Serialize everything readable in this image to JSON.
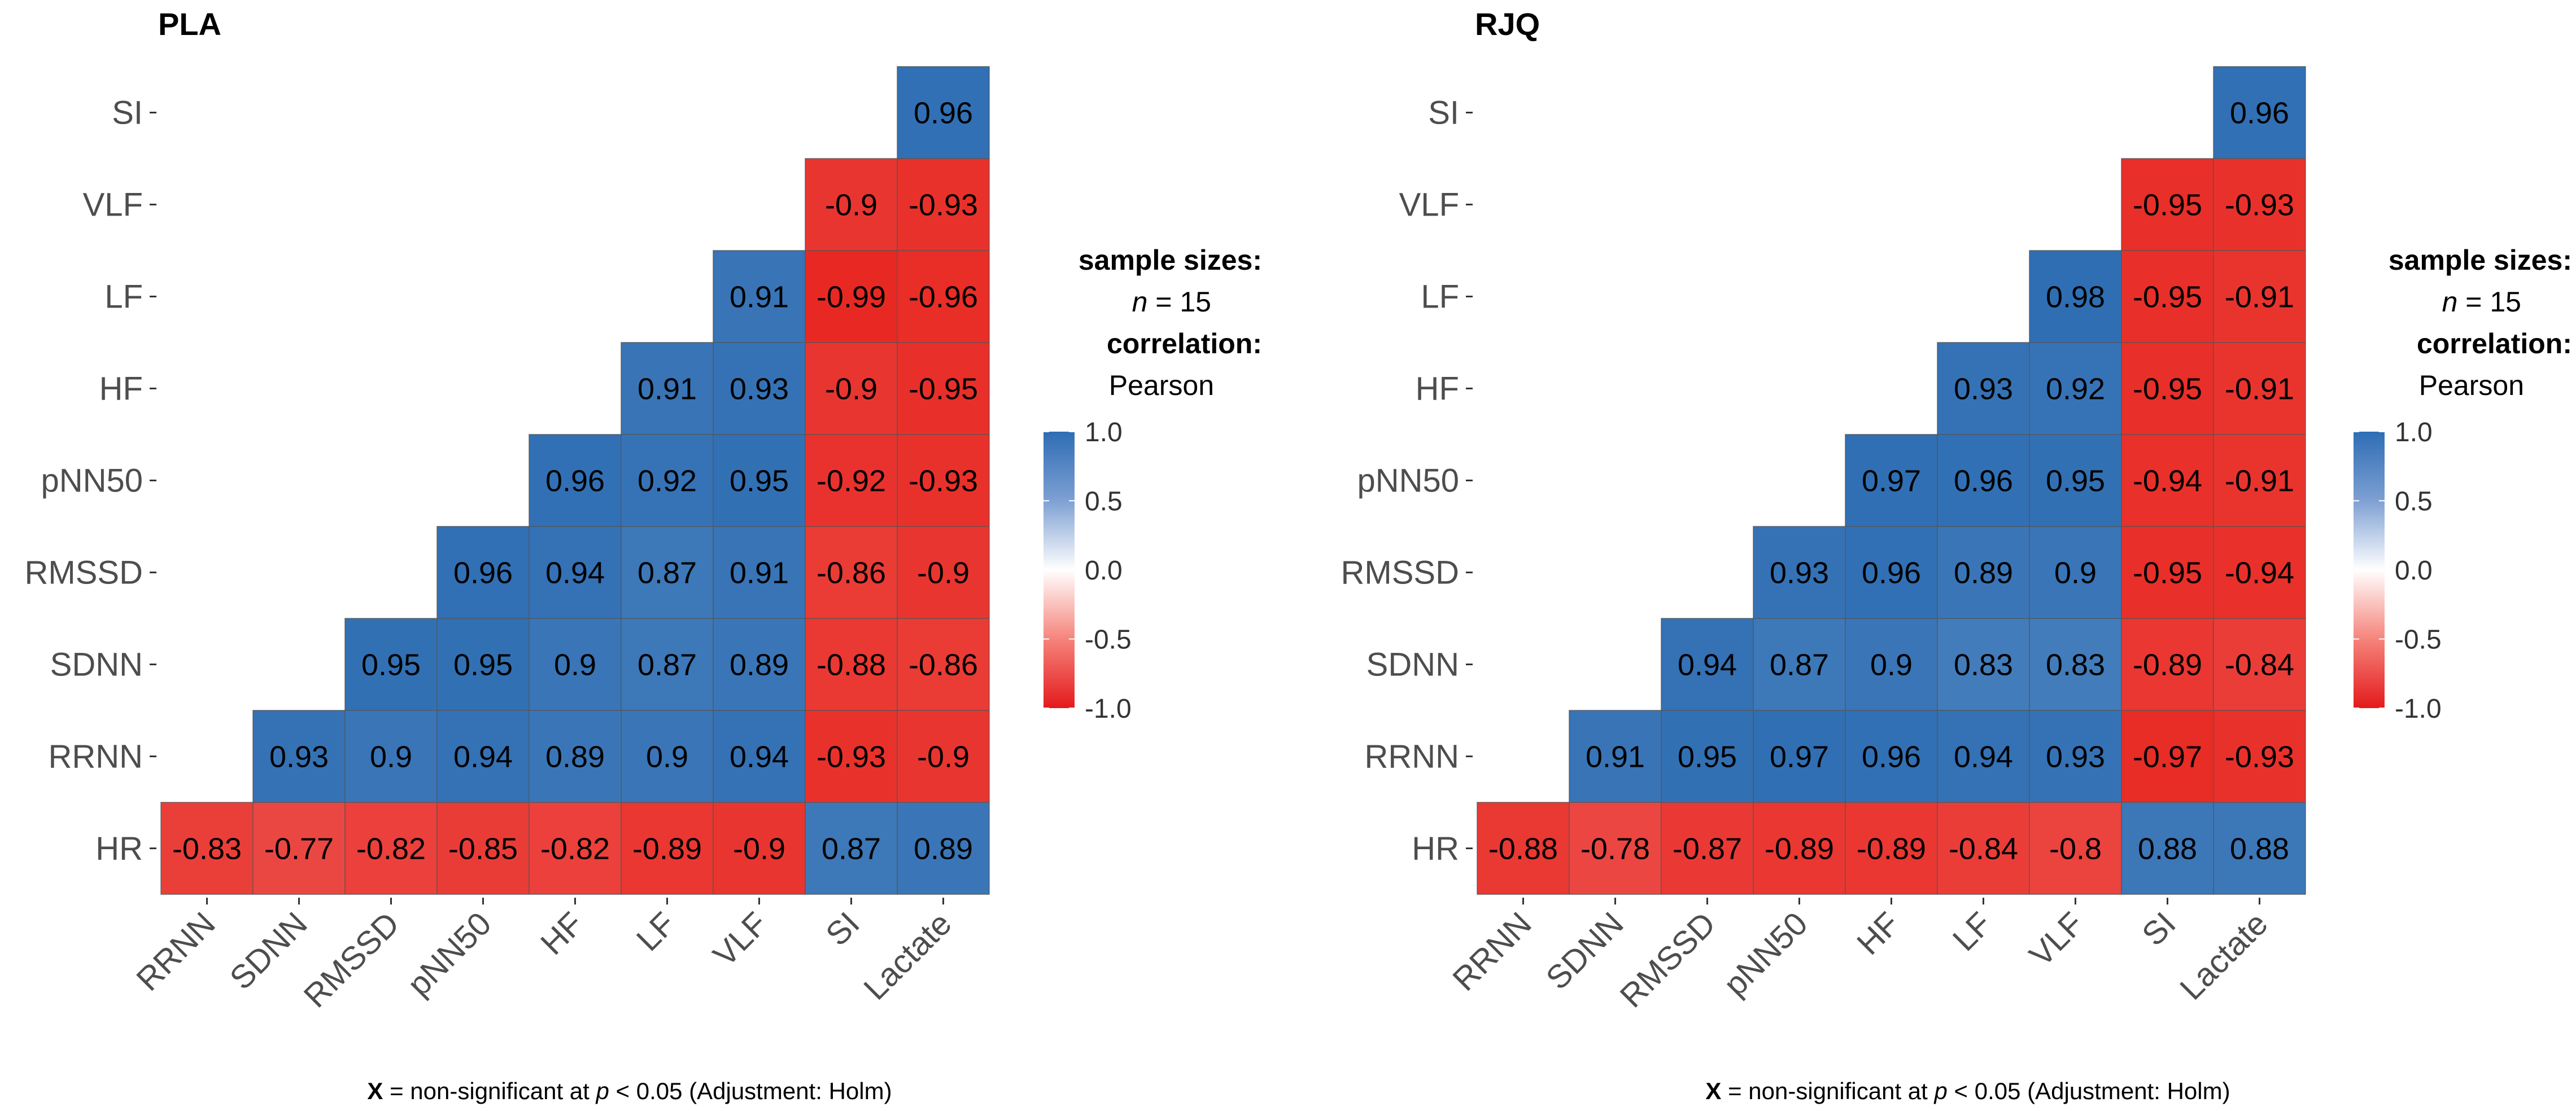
{
  "chart_data": [
    {
      "type": "heatmap",
      "title": "PLA",
      "variables": [
        "HR",
        "RRNN",
        "SDNN",
        "RMSSD",
        "pNN50",
        "HF",
        "LF",
        "VLF",
        "SI",
        "Lactate"
      ],
      "x_labels": [
        "RRNN",
        "SDNN",
        "RMSSD",
        "pNN50",
        "HF",
        "LF",
        "VLF",
        "SI",
        "Lactate"
      ],
      "y_labels": [
        "HR",
        "RRNN",
        "SDNN",
        "RMSSD",
        "pNN50",
        "HF",
        "LF",
        "VLF",
        "SI"
      ],
      "values": [
        [
          -0.83,
          -0.77,
          -0.82,
          -0.85,
          -0.82,
          -0.89,
          -0.9,
          0.87,
          0.89
        ],
        [
          0.93,
          0.9,
          0.94,
          0.89,
          0.9,
          0.94,
          -0.93,
          -0.9
        ],
        [
          0.95,
          0.95,
          0.9,
          0.87,
          0.89,
          -0.88,
          -0.86
        ],
        [
          0.96,
          0.94,
          0.87,
          0.91,
          -0.86,
          -0.9
        ],
        [
          0.96,
          0.92,
          0.95,
          -0.92,
          -0.93
        ],
        [
          0.91,
          0.93,
          -0.9,
          -0.95
        ],
        [
          0.91,
          -0.99,
          -0.96
        ],
        [
          -0.9,
          -0.93
        ],
        [
          0.96
        ]
      ],
      "legend": {
        "sample_title": "sample sizes:",
        "n_label": "n",
        "n_value": "= 15",
        "corr_title": "correlation:",
        "corr_method": "Pearson",
        "ticks": [
          "1.0",
          "0.5",
          "0.0",
          "-0.5",
          "-1.0"
        ],
        "range": [
          -1,
          1
        ]
      },
      "caption": {
        "symbol": "X",
        "text1": " = non-significant at ",
        "p": "p",
        "text2": " < 0.05 (Adjustment: Holm)"
      }
    },
    {
      "type": "heatmap",
      "title": "RJQ",
      "variables": [
        "HR",
        "RRNN",
        "SDNN",
        "RMSSD",
        "pNN50",
        "HF",
        "LF",
        "VLF",
        "SI",
        "Lactate"
      ],
      "x_labels": [
        "RRNN",
        "SDNN",
        "RMSSD",
        "pNN50",
        "HF",
        "LF",
        "VLF",
        "SI",
        "Lactate"
      ],
      "y_labels": [
        "HR",
        "RRNN",
        "SDNN",
        "RMSSD",
        "pNN50",
        "HF",
        "LF",
        "VLF",
        "SI"
      ],
      "values": [
        [
          -0.88,
          -0.78,
          -0.87,
          -0.89,
          -0.89,
          -0.84,
          -0.8,
          0.88,
          0.88
        ],
        [
          0.91,
          0.95,
          0.97,
          0.96,
          0.94,
          0.93,
          -0.97,
          -0.93
        ],
        [
          0.94,
          0.87,
          0.9,
          0.83,
          0.83,
          -0.89,
          -0.84
        ],
        [
          0.93,
          0.96,
          0.89,
          0.9,
          -0.95,
          -0.94
        ],
        [
          0.97,
          0.96,
          0.95,
          -0.94,
          -0.91
        ],
        [
          0.93,
          0.92,
          -0.95,
          -0.91
        ],
        [
          0.98,
          -0.95,
          -0.91
        ],
        [
          -0.95,
          -0.93
        ],
        [
          0.96
        ]
      ],
      "legend": {
        "sample_title": "sample sizes:",
        "n_label": "n",
        "n_value": "= 15",
        "corr_title": "correlation:",
        "corr_method": "Pearson",
        "ticks": [
          "1.0",
          "0.5",
          "0.0",
          "-0.5",
          "-1.0"
        ],
        "range": [
          -1,
          1
        ]
      },
      "caption": {
        "symbol": "X",
        "text1": " = non-significant at ",
        "p": "p",
        "text2": " < 0.05 (Adjustment: Holm)"
      }
    }
  ]
}
